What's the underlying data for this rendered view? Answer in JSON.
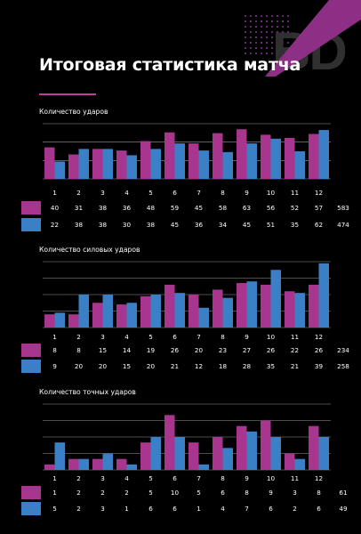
{
  "title": "Итоговая статистика матча",
  "logo_text": "BD",
  "colors": {
    "background": "#000000",
    "series_1": "#a8368e",
    "series_2": "#3b7fc6",
    "accent_line": "#c23e97",
    "logo_stripe": "#8e2f86",
    "logo_dots": "#6c2f78",
    "logo_text": "#303030",
    "grid": "#9a9a9a"
  },
  "chart_data": [
    {
      "type": "bar",
      "title": "Количество ударов",
      "categories": [
        "1",
        "2",
        "3",
        "4",
        "5",
        "6",
        "7",
        "8",
        "9",
        "10",
        "11",
        "12"
      ],
      "ylim": [
        0,
        70
      ],
      "grid": true,
      "series": [
        {
          "color_key": "series_1",
          "values": [
            40,
            31,
            38,
            36,
            48,
            59,
            45,
            58,
            63,
            56,
            52,
            57
          ],
          "total": "583"
        },
        {
          "color_key": "series_2",
          "values": [
            22,
            38,
            38,
            30,
            38,
            45,
            36,
            34,
            45,
            51,
            35,
            62
          ],
          "total": "474"
        }
      ]
    },
    {
      "type": "bar",
      "title": "Количество силовых ударов",
      "categories": [
        "1",
        "2",
        "3",
        "4",
        "5",
        "6",
        "7",
        "8",
        "9",
        "10",
        "11",
        "12"
      ],
      "ylim": [
        0,
        40
      ],
      "grid": true,
      "series": [
        {
          "color_key": "series_1",
          "values": [
            8,
            8,
            15,
            14,
            19,
            26,
            20,
            23,
            27,
            26,
            22,
            26
          ],
          "total": "234"
        },
        {
          "color_key": "series_2",
          "values": [
            9,
            20,
            20,
            15,
            20,
            21,
            12,
            18,
            28,
            35,
            21,
            39
          ],
          "total": "258"
        }
      ]
    },
    {
      "type": "bar",
      "title": "Количество точных ударов",
      "categories": [
        "1",
        "2",
        "3",
        "4",
        "5",
        "6",
        "7",
        "8",
        "9",
        "10",
        "11",
        "12"
      ],
      "ylim": [
        0,
        12
      ],
      "grid": true,
      "series": [
        {
          "color_key": "series_1",
          "values": [
            1,
            2,
            2,
            2,
            5,
            10,
            5,
            6,
            8,
            9,
            3,
            8
          ],
          "total": "61"
        },
        {
          "color_key": "series_2",
          "values": [
            5,
            2,
            3,
            1,
            6,
            6,
            1,
            4,
            7,
            6,
            2,
            6
          ],
          "total": "49"
        }
      ]
    }
  ]
}
